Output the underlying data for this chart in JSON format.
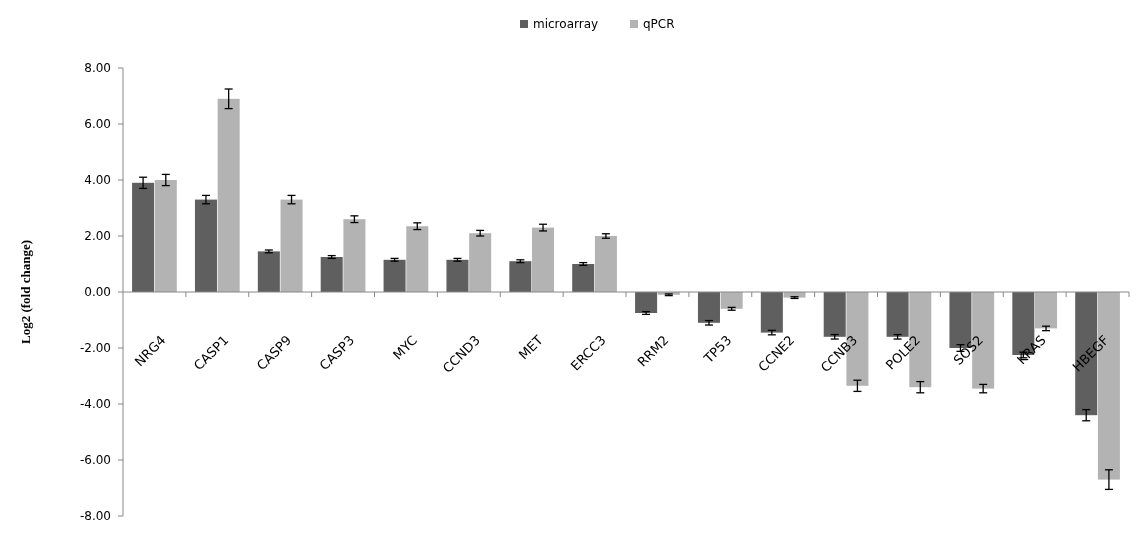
{
  "chart_data": {
    "type": "bar",
    "ylabel": "Log2 (fold change)",
    "categories": [
      "NRG4",
      "CASP1",
      "CASP9",
      "CASP3",
      "MYC",
      "CCND3",
      "MET",
      "ERCC3",
      "RRM2",
      "TP53",
      "CCNE2",
      "CCNB3",
      "POLE2",
      "SOS2",
      "KRAS",
      "HBEGF"
    ],
    "series": [
      {
        "name": "microarray",
        "color": "#5f5f5f",
        "values": [
          3.9,
          3.3,
          1.45,
          1.25,
          1.15,
          1.15,
          1.1,
          1.0,
          -0.75,
          -1.1,
          -1.45,
          -1.6,
          -1.6,
          -2.0,
          -2.25,
          -4.4
        ],
        "errors": [
          0.2,
          0.15,
          0.05,
          0.05,
          0.05,
          0.05,
          0.05,
          0.05,
          0.05,
          0.08,
          0.08,
          0.08,
          0.08,
          0.12,
          0.1,
          0.2
        ]
      },
      {
        "name": "qPCR",
        "color": "#b3b3b3",
        "values": [
          4.0,
          6.9,
          3.3,
          2.6,
          2.35,
          2.1,
          2.3,
          2.0,
          -0.1,
          -0.6,
          -0.2,
          -3.35,
          -3.4,
          -3.45,
          -1.3,
          -6.7
        ],
        "errors": [
          0.2,
          0.35,
          0.15,
          0.12,
          0.12,
          0.1,
          0.12,
          0.08,
          0.03,
          0.05,
          0.03,
          0.2,
          0.2,
          0.15,
          0.08,
          0.35
        ]
      }
    ],
    "ylim": [
      -8,
      8
    ],
    "yticks": [
      {
        "value": -8,
        "label": "-8.00"
      },
      {
        "value": -6,
        "label": "-6.00"
      },
      {
        "value": -4,
        "label": "-4.00"
      },
      {
        "value": -2,
        "label": "-2.00"
      },
      {
        "value": 0,
        "label": "0.00"
      },
      {
        "value": 2,
        "label": "2.00"
      },
      {
        "value": 4,
        "label": "4.00"
      },
      {
        "value": 6,
        "label": "6.00"
      },
      {
        "value": 8,
        "label": "8.00"
      }
    ],
    "legend": "top"
  }
}
